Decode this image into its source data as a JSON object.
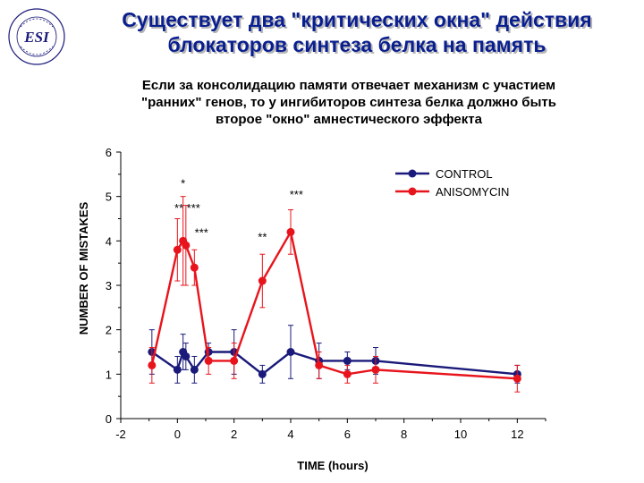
{
  "header": {
    "title_line1": "Существует два \"критических окна\" действия",
    "title_line2": "блокаторов синтеза белка на память",
    "logo_text": "Department of ESI Neuroscience"
  },
  "subtitle": {
    "line1": "Если за консолидацию памяти отвечает механизм с участием",
    "line2": "\"ранних\" генов, то у ингибиторов синтеза белка должно быть",
    "line3": "второе \"окно\" амнестического эффекта"
  },
  "colors": {
    "title": "#0a1f8f",
    "control": "#1a1a7a",
    "anisomycin": "#e8141c"
  },
  "chart_data": {
    "type": "line",
    "xlabel": "TIME (hours)",
    "ylabel": "NUMBER OF MISTAKES",
    "xlim": [
      -2,
      13
    ],
    "ylim": [
      0,
      6
    ],
    "xticks": [
      -2,
      0,
      2,
      4,
      6,
      8,
      10,
      12
    ],
    "yticks": [
      0,
      1,
      2,
      3,
      4,
      5,
      6
    ],
    "legend_position": "top-right",
    "grid": false,
    "series": [
      {
        "name": "CONTROL",
        "color": "#1a1a7a",
        "x": [
          -0.9,
          0.0,
          0.2,
          0.3,
          0.6,
          1.1,
          2.0,
          3.0,
          4.0,
          5.0,
          6.0,
          7.0,
          12.0
        ],
        "y": [
          1.5,
          1.1,
          1.5,
          1.4,
          1.1,
          1.5,
          1.5,
          1.0,
          1.5,
          1.3,
          1.3,
          1.3,
          1.0
        ],
        "err": [
          0.5,
          0.3,
          0.4,
          0.3,
          0.3,
          0.2,
          0.5,
          0.2,
          0.6,
          0.4,
          0.2,
          0.3,
          0.2
        ]
      },
      {
        "name": "ANISOMYCIN",
        "color": "#e8141c",
        "x": [
          -0.9,
          0.0,
          0.2,
          0.3,
          0.6,
          1.1,
          2.0,
          3.0,
          4.0,
          5.0,
          6.0,
          7.0,
          12.0
        ],
        "y": [
          1.2,
          3.8,
          4.0,
          3.9,
          3.4,
          1.3,
          1.3,
          3.1,
          4.2,
          1.2,
          1.0,
          1.1,
          0.9
        ],
        "err": [
          0.4,
          0.7,
          1.0,
          0.9,
          0.4,
          0.3,
          0.4,
          0.6,
          0.5,
          0.3,
          0.2,
          0.3,
          0.3
        ]
      }
    ],
    "annotations": [
      {
        "text": "*",
        "x": 0.2,
        "y": 5.2
      },
      {
        "text": "** ***",
        "x": 0.35,
        "y": 4.65
      },
      {
        "text": "***",
        "x": 0.85,
        "y": 4.1
      },
      {
        "text": "***",
        "x": 4.2,
        "y": 4.95
      },
      {
        "text": "**",
        "x": 3.0,
        "y": 4.0
      }
    ]
  }
}
